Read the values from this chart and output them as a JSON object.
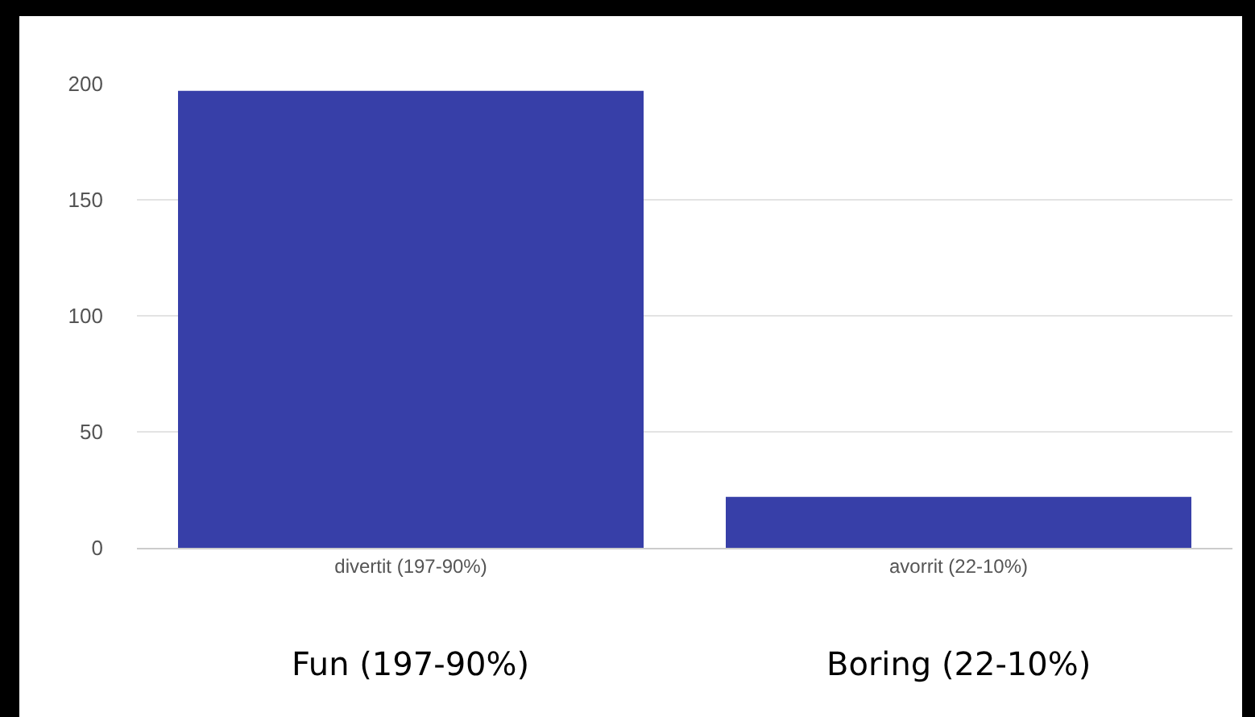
{
  "chart_data": {
    "type": "bar",
    "categories": [
      "divertit (197-90%)",
      "avorrit (22-10%)"
    ],
    "values": [
      197,
      22
    ],
    "color": "#373fa8",
    "ylim": [
      0,
      200
    ],
    "yticks": [
      0,
      50,
      100,
      150,
      200
    ],
    "grid": "y",
    "annotations": [
      "Fun (197-90%)",
      "Boring (22-10%)"
    ]
  }
}
